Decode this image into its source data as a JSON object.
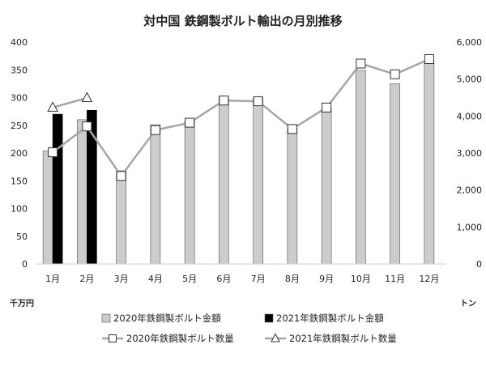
{
  "chart_data": {
    "type": "bar",
    "title": "対中国 鉄鋼製ボルト輸出の月別推移",
    "categories": [
      "1月",
      "2月",
      "3月",
      "4月",
      "5月",
      "6月",
      "7月",
      "8月",
      "9月",
      "10月",
      "11月",
      "12月"
    ],
    "y_left": {
      "unit": "千万円",
      "range": [
        0,
        400
      ],
      "ticks": [
        "0",
        "50",
        "100",
        "150",
        "200",
        "250",
        "300",
        "350",
        "400"
      ]
    },
    "y_right": {
      "unit": "トン",
      "range": [
        0,
        6000
      ],
      "ticks": [
        "0",
        "1,000",
        "2,000",
        "3,000",
        "4,000",
        "5,000",
        "6,000"
      ]
    },
    "grid": false,
    "legend_position": "bottom",
    "series": [
      {
        "name": "2020年鉄鋼製ボルト金額",
        "kind": "bar",
        "axis": "left",
        "color": "#cccccc",
        "values": [
          204,
          260,
          168,
          251,
          258,
          301,
          300,
          245,
          280,
          349,
          325,
          365
        ]
      },
      {
        "name": "2021年鉄鋼製ボルト金額",
        "kind": "bar",
        "axis": "left",
        "color": "#000000",
        "values": [
          270,
          277,
          null,
          null,
          null,
          null,
          null,
          null,
          null,
          null,
          null,
          null
        ]
      },
      {
        "name": "2020年鉄鋼製ボルト数量",
        "kind": "line",
        "axis": "right",
        "color": "#a6a6a6",
        "marker": "square",
        "values": [
          3020,
          3720,
          2380,
          3620,
          3820,
          4420,
          4400,
          3650,
          4230,
          5420,
          5130,
          5540
        ]
      },
      {
        "name": "2021年鉄鋼製ボルト数量",
        "kind": "line",
        "axis": "right",
        "color": "#a6a6a6",
        "marker": "triangle",
        "values": [
          4230,
          4490,
          null,
          null,
          null,
          null,
          null,
          null,
          null,
          null,
          null,
          null
        ]
      }
    ]
  }
}
